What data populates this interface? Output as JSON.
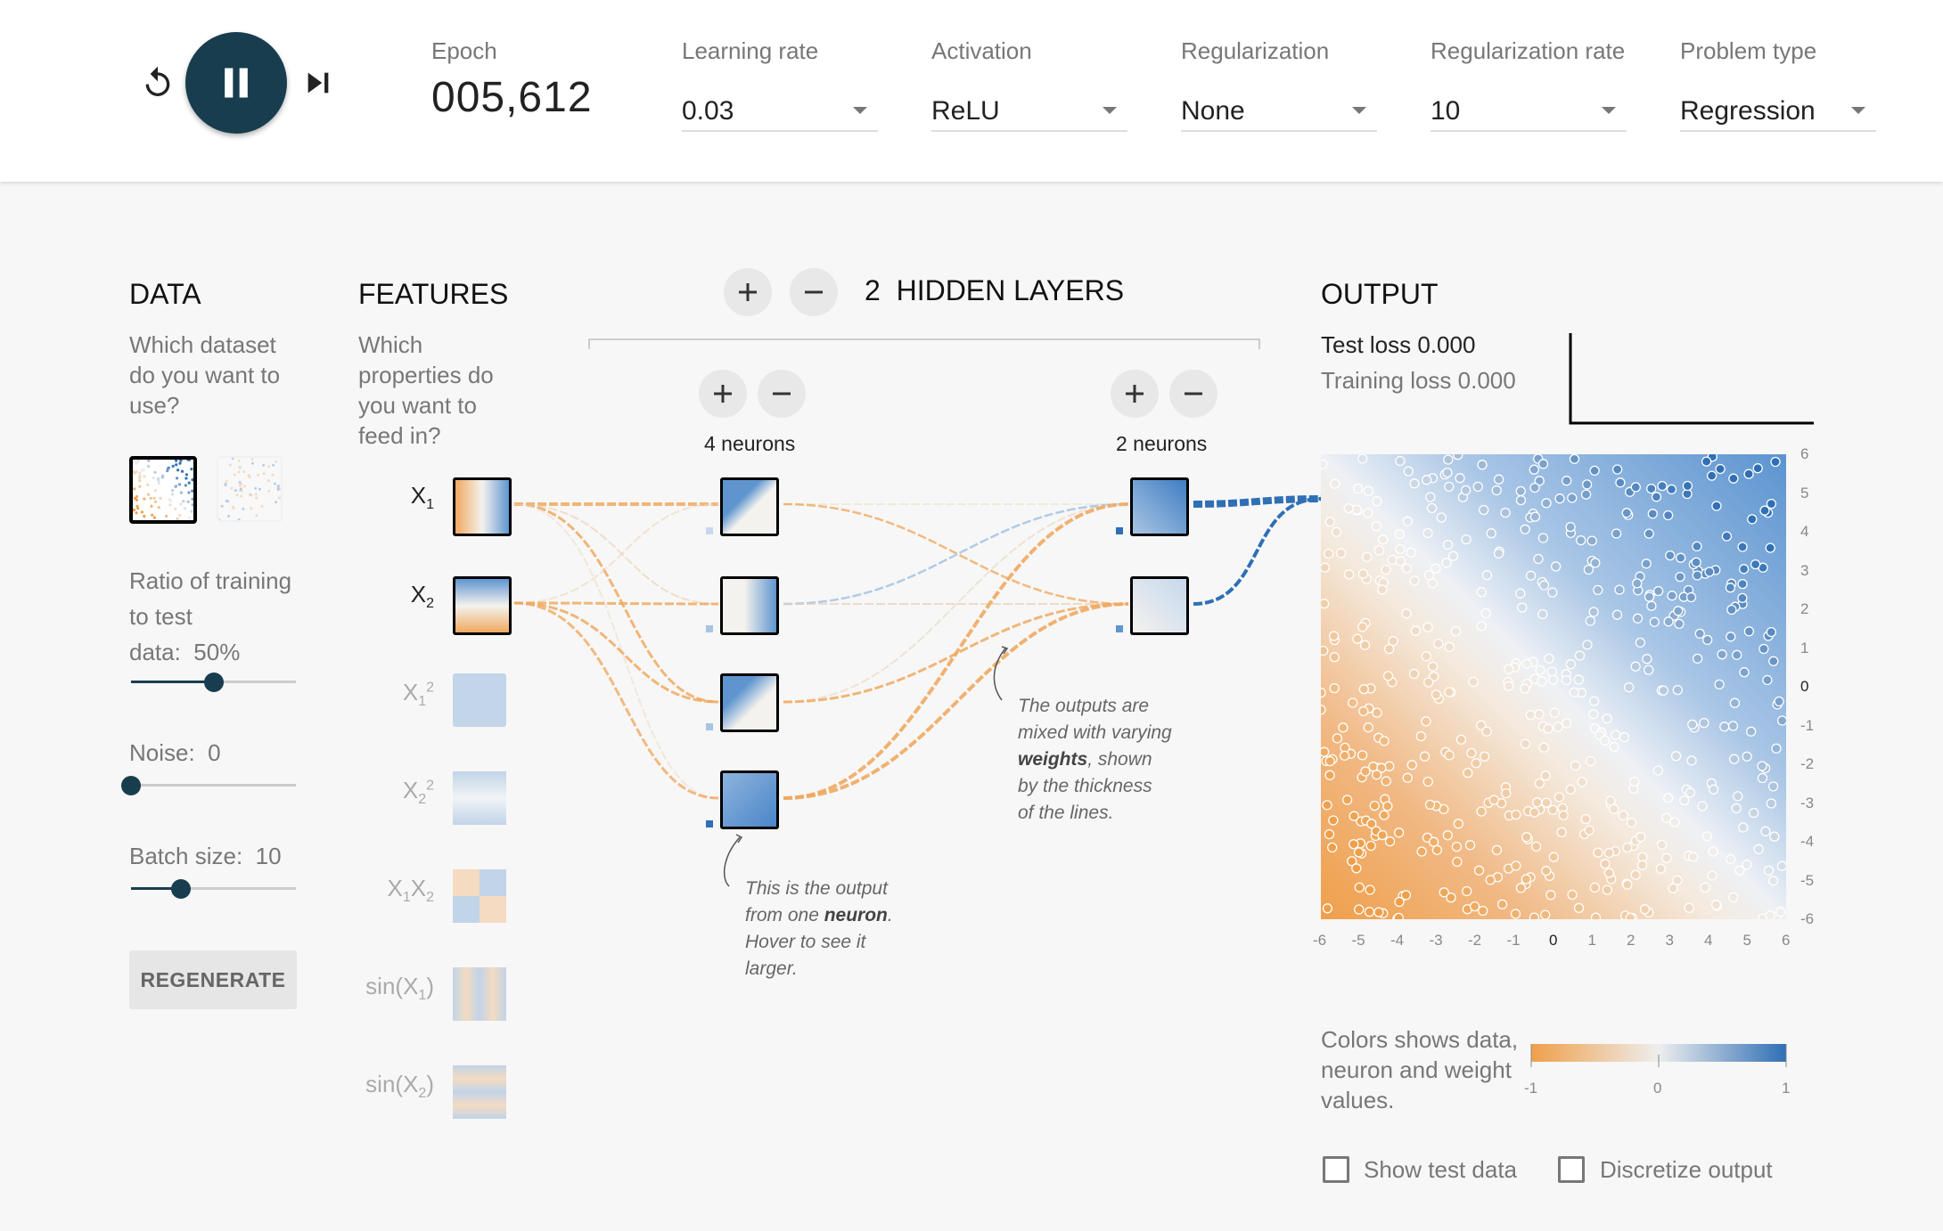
{
  "controls": {
    "reset_icon": "reset-icon",
    "play_icon": "pause-icon",
    "step_icon": "step-forward-icon"
  },
  "epoch": {
    "label": "Epoch",
    "value": "005,612"
  },
  "params": [
    {
      "label": "Learning rate",
      "value": "0.03"
    },
    {
      "label": "Activation",
      "value": "ReLU"
    },
    {
      "label": "Regularization",
      "value": "None"
    },
    {
      "label": "Regularization rate",
      "value": "10"
    },
    {
      "label": "Problem type",
      "value": "Regression"
    }
  ],
  "data_panel": {
    "title": "DATA",
    "question": "Which dataset do you want to use?",
    "ratio_label": "Ratio of training to test",
    "ratio_label2": "data:",
    "ratio_value": "50%",
    "ratio_fraction": 0.5,
    "noise_label": "Noise:",
    "noise_value": "0",
    "noise_fraction": 0,
    "batch_label": "Batch size:",
    "batch_value": "10",
    "batch_fraction": 0.3,
    "regenerate": "REGENERATE"
  },
  "features_panel": {
    "title": "FEATURES",
    "question": "Which properties do you want to feed in?",
    "features": [
      {
        "label": "X",
        "sub": "1",
        "sup": "",
        "enabled": true
      },
      {
        "label": "X",
        "sub": "2",
        "sup": "",
        "enabled": true
      },
      {
        "label": "X",
        "sub": "1",
        "sup": "2",
        "enabled": false
      },
      {
        "label": "X",
        "sub": "2",
        "sup": "2",
        "enabled": false
      },
      {
        "label": "X",
        "sub": "1",
        "sup": "",
        "label2": "X",
        "sub2": "2",
        "enabled": false
      },
      {
        "label": "sin(X",
        "sub": "1",
        "suffix": ")",
        "enabled": false
      },
      {
        "label": "sin(X",
        "sub": "2",
        "suffix": ")",
        "enabled": false
      }
    ]
  },
  "network": {
    "layers_count": "2",
    "layers_title": "HIDDEN LAYERS",
    "layer1_neurons": "4 neurons",
    "layer2_neurons": "2 neurons",
    "add_icon": "plus-icon",
    "remove_icon": "minus-icon",
    "annotation_neuron_1": "This is the output",
    "annotation_neuron_2": "from one",
    "annotation_neuron_bold": "neuron",
    "annotation_neuron_3": ".",
    "annotation_neuron_4": "Hover to see it",
    "annotation_neuron_5": "larger.",
    "annotation_weights_1": "The outputs are",
    "annotation_weights_2": "mixed with varying",
    "annotation_weights_bold": "weights",
    "annotation_weights_3": ", shown",
    "annotation_weights_4": "by the thickness",
    "annotation_weights_5": "of the lines."
  },
  "output_panel": {
    "title": "OUTPUT",
    "test_loss": "Test loss 0.000",
    "training_loss": "Training loss 0.000",
    "x_ticks": [
      "-6",
      "-5",
      "-4",
      "-3",
      "-2",
      "-1",
      "0",
      "1",
      "2",
      "3",
      "4",
      "5",
      "6"
    ],
    "y_ticks": [
      "6",
      "5",
      "4",
      "3",
      "2",
      "1",
      "0",
      "-1",
      "-2",
      "-3",
      "-4",
      "-5",
      "-6"
    ],
    "legend_text": "Colors shows data, neuron and weight values.",
    "legend_min": "-1",
    "legend_mid": "0",
    "legend_max": "1",
    "show_test_data": "Show test data",
    "discretize_output": "Discretize output"
  },
  "colors": {
    "orange": "#f59322",
    "blue": "#0877bd",
    "dark": "#183d4e"
  }
}
